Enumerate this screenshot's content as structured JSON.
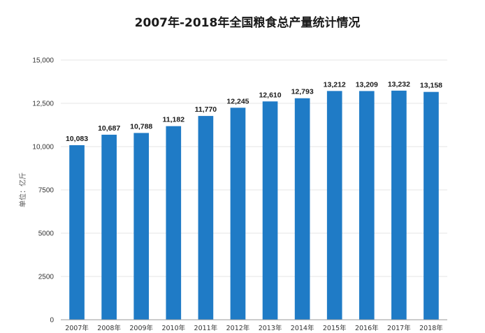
{
  "chart_data": {
    "type": "bar",
    "title": "2007年-2018年全国粮食总产量统计情况",
    "ylabel": "单位：亿斤",
    "xlabel": "",
    "categories": [
      "2007年",
      "2008年",
      "2009年",
      "2010年",
      "2011年",
      "2012年",
      "2013年",
      "2014年",
      "2015年",
      "2016年",
      "2017年",
      "2018年"
    ],
    "values": [
      10083,
      10687,
      10788,
      11182,
      11770,
      12245,
      12610,
      12793,
      13212,
      13209,
      13232,
      13158
    ],
    "data_labels": [
      "10,083",
      "10,687",
      "10,788",
      "11,182",
      "11,770",
      "12,245",
      "12,610",
      "12,793",
      "13,212",
      "13,209",
      "13,232",
      "13,158"
    ],
    "ylim": [
      0,
      15000
    ],
    "yticks": [
      0,
      2500,
      5000,
      7500,
      10000,
      12500,
      15000
    ],
    "ytick_labels": [
      "0",
      "2500",
      "5000",
      "7500",
      "10,000",
      "12,500",
      "15,000"
    ],
    "grid": true,
    "bar_color": "#1f7bc6"
  }
}
